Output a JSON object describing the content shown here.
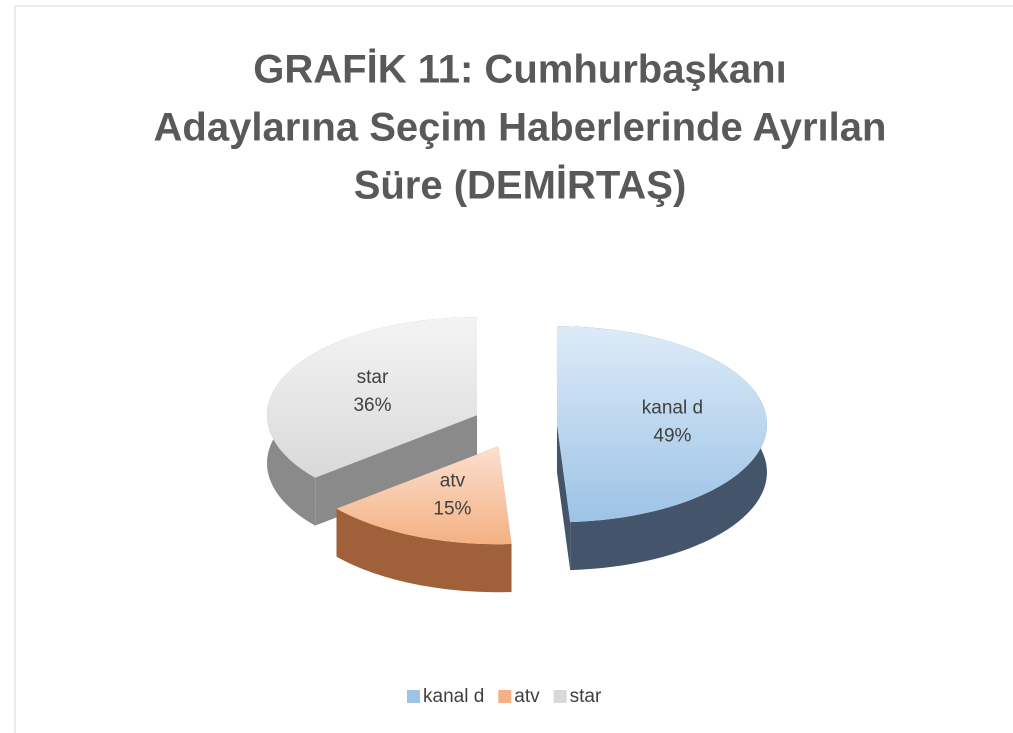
{
  "chart_data": {
    "type": "pie",
    "title": [
      "GRAFİK 11: Cumhurbaşkanı",
      "Adaylarına Seçim Haberlerinde Ayrılan",
      "Süre (DEMİRTAŞ)"
    ],
    "categories": [
      "kanal d",
      "atv",
      "star"
    ],
    "values": [
      49,
      15,
      36
    ],
    "value_labels": [
      "49%",
      "15%",
      "36%"
    ],
    "colors": [
      "#9dc3e6",
      "#f4b183",
      "#d9d9d9"
    ],
    "legend": "bottom"
  }
}
